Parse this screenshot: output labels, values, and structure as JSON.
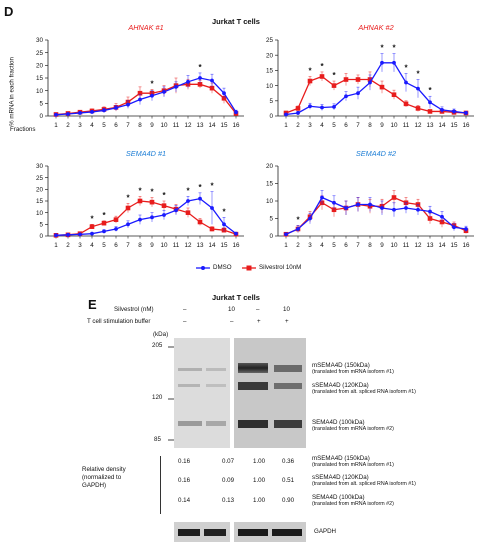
{
  "panel_d": {
    "letter": "D",
    "title": "Jurkat T cells",
    "ylabel": "% mRNA in each fraction",
    "fractions_label": "Fractions",
    "legend": {
      "dmso": "DMSO",
      "silvestrol": "Silvestrol 10nM"
    }
  },
  "chart_data": [
    {
      "type": "line",
      "title": "AHNAK #1",
      "x": [
        1,
        2,
        3,
        4,
        5,
        6,
        7,
        8,
        9,
        10,
        11,
        12,
        13,
        14,
        15,
        16
      ],
      "ylim": [
        0,
        30
      ],
      "yticks": [
        0,
        5,
        10,
        15,
        20,
        25,
        30
      ],
      "series": [
        {
          "name": "DMSO",
          "color": "#1a1aff",
          "values": [
            0.5,
            0.8,
            1.2,
            1.6,
            2.2,
            3.2,
            4.5,
            6.5,
            8,
            9.5,
            11.5,
            13.5,
            15,
            14,
            9,
            1.5
          ],
          "err": [
            0.3,
            0.4,
            0.5,
            0.6,
            0.8,
            1,
            1.5,
            2,
            2,
            2,
            2,
            2.5,
            2,
            2.5,
            2,
            0.8
          ]
        },
        {
          "name": "Silvestrol 10nM",
          "color": "#e81c1c",
          "values": [
            0.6,
            1,
            1.5,
            2,
            2.6,
            3.4,
            5.5,
            9,
            9,
            10,
            12,
            12.5,
            12.5,
            11,
            7,
            1
          ]
        },
        {
          "name": "Silvestrol 10nM error",
          "values": [
            0.3,
            0.5,
            0.6,
            0.8,
            1,
            1.5,
            2,
            2.5,
            1.5,
            2,
            3,
            2,
            1.5,
            2,
            2,
            0.5
          ]
        }
      ],
      "significance": [
        "*",
        "*"
      ],
      "significance_at": [
        9,
        13
      ]
    },
    {
      "type": "line",
      "title": "AHNAK #2",
      "x": [
        1,
        2,
        3,
        4,
        5,
        6,
        7,
        8,
        9,
        10,
        11,
        12,
        13,
        14,
        15,
        16
      ],
      "ylim": [
        0,
        25
      ],
      "yticks": [
        0,
        5,
        10,
        15,
        20,
        25
      ],
      "series": [
        {
          "name": "DMSO",
          "color": "#1a1aff",
          "values": [
            0.5,
            1,
            3.2,
            2.8,
            3,
            6.5,
            7.5,
            11,
            17.5,
            17.5,
            11,
            9,
            4.5,
            2,
            1.5,
            1
          ],
          "err": [
            0.3,
            0.5,
            1,
            1,
            1,
            1.5,
            2,
            2.5,
            3,
            3,
            3,
            3,
            2,
            1,
            0.8,
            0.5
          ]
        },
        {
          "name": "Silvestrol 10nM",
          "color": "#e81c1c",
          "values": [
            1,
            2.5,
            11.5,
            13,
            10,
            12,
            12,
            12,
            9.5,
            7,
            4,
            2.5,
            1.5,
            1.5,
            1.2,
            1
          ]
        },
        {
          "name": "Silvestrol 10nM error",
          "values": [
            0.5,
            0.8,
            1.5,
            1.5,
            1.5,
            2,
            1.5,
            2.5,
            2,
            1.5,
            1,
            1,
            0.5,
            0.5,
            0.5,
            0.5
          ]
        }
      ],
      "significance": [
        "*",
        "*",
        "*",
        "*",
        "*",
        "*",
        "*",
        "*"
      ],
      "significance_at": [
        3,
        4,
        5,
        9,
        10,
        11,
        12,
        13
      ]
    },
    {
      "type": "line",
      "title": "SEMA4D #1",
      "x": [
        1,
        2,
        3,
        4,
        5,
        6,
        7,
        8,
        9,
        10,
        11,
        12,
        13,
        14,
        15,
        16
      ],
      "ylim": [
        0,
        30
      ],
      "yticks": [
        0,
        5,
        10,
        15,
        20,
        25,
        30
      ],
      "series": [
        {
          "name": "DMSO",
          "color": "#1a1aff",
          "values": [
            0.3,
            0.5,
            0.7,
            1,
            2,
            3,
            5,
            7,
            8,
            9,
            11,
            15,
            16,
            12,
            5,
            1
          ],
          "err": [
            0.2,
            0.3,
            0.3,
            0.5,
            0.7,
            1,
            1.5,
            2,
            2,
            2,
            2,
            2,
            2.5,
            7,
            3,
            0.5
          ]
        },
        {
          "name": "Silvestrol 10nM",
          "color": "#e81c1c",
          "values": [
            0.3,
            0.5,
            1,
            4,
            5.5,
            7,
            12,
            15,
            14.5,
            13,
            11.5,
            10,
            6,
            3,
            2.5,
            0.8
          ]
        },
        {
          "name": "Silvestrol 10nM error",
          "values": [
            0.2,
            0.3,
            0.5,
            1,
            1,
            1.5,
            2,
            2,
            2,
            2,
            2,
            2,
            1.5,
            1,
            1,
            0.3
          ]
        }
      ],
      "significance": [
        "*",
        "*",
        "*",
        "*",
        "*",
        "*",
        "*",
        "*",
        "*",
        "*"
      ],
      "significance_at": [
        4,
        5,
        7,
        8,
        9,
        10,
        12,
        13,
        14,
        15
      ]
    },
    {
      "type": "line",
      "title": "SEMA4D #2",
      "x": [
        1,
        2,
        3,
        4,
        5,
        6,
        7,
        8,
        9,
        10,
        11,
        12,
        13,
        14,
        15,
        16
      ],
      "ylim": [
        0,
        20
      ],
      "yticks": [
        0,
        5,
        10,
        15,
        20
      ],
      "series": [
        {
          "name": "DMSO",
          "color": "#1a1aff",
          "values": [
            0.5,
            2,
            5,
            11,
            9.5,
            8,
            9,
            9,
            8,
            7.5,
            8,
            7.5,
            7,
            5.5,
            2.5,
            2
          ],
          "err": [
            0.3,
            1,
            1.5,
            2,
            2,
            2,
            2,
            2,
            2,
            2,
            1.5,
            1.5,
            1.5,
            1.5,
            1,
            0.8
          ]
        },
        {
          "name": "Silvestrol 10nM",
          "color": "#e81c1c",
          "values": [
            0.5,
            2,
            5.5,
            9.5,
            7.5,
            8,
            9,
            8.5,
            8.5,
            11,
            9.5,
            9,
            5,
            4,
            3,
            1.5
          ]
        },
        {
          "name": "Silvestrol 10nM error",
          "values": [
            0.3,
            1,
            1.5,
            2,
            2,
            2,
            2,
            2,
            2,
            2,
            1.5,
            1.5,
            1.5,
            1.5,
            1,
            0.8
          ]
        }
      ],
      "significance": [
        "*"
      ],
      "significance_at": [
        2
      ]
    }
  ],
  "panel_e": {
    "letter": "E",
    "title": "Jurkat T cells",
    "row1_label": "Silvestrol (nM)",
    "row1_values": [
      "–",
      "10",
      "–",
      "10"
    ],
    "row2_label": "T cell stimulation buffer",
    "row2_values": [
      "–",
      "–",
      "+",
      "+"
    ],
    "kda_label": "(kDa)",
    "markers": [
      "205",
      "120",
      "85"
    ],
    "bands": [
      {
        "name": "mSEMA4D (150kDa)",
        "note": "(translated from mRNA isoform #1)"
      },
      {
        "name": "sSEMA4D (120KDa)",
        "note": "(translated from alt. spliced RNA isoform #1)"
      },
      {
        "name": "SEMA4D (100kDa)",
        "note": "(translated from mRNA isoform #2)"
      }
    ],
    "density_label": "Relative density (normalized to GAPDH)",
    "density_rows": [
      {
        "values": [
          "0.16",
          "0.07",
          "1.00",
          "0.36"
        ],
        "name": "mSEMA4D (150kDa)",
        "note": "(translated from mRNA isoform #1)"
      },
      {
        "values": [
          "0.16",
          "0.09",
          "1.00",
          "0.51"
        ],
        "name": "sSEMA4D (120KDa)",
        "note": "(translated from alt. spliced RNA isoform #1)"
      },
      {
        "values": [
          "0.14",
          "0.13",
          "1.00",
          "0.90"
        ],
        "name": "SEMA4D (100kDa)",
        "note": "(translated from mRNA isoform #2)"
      }
    ],
    "gapdh_label": "GAPDH"
  }
}
